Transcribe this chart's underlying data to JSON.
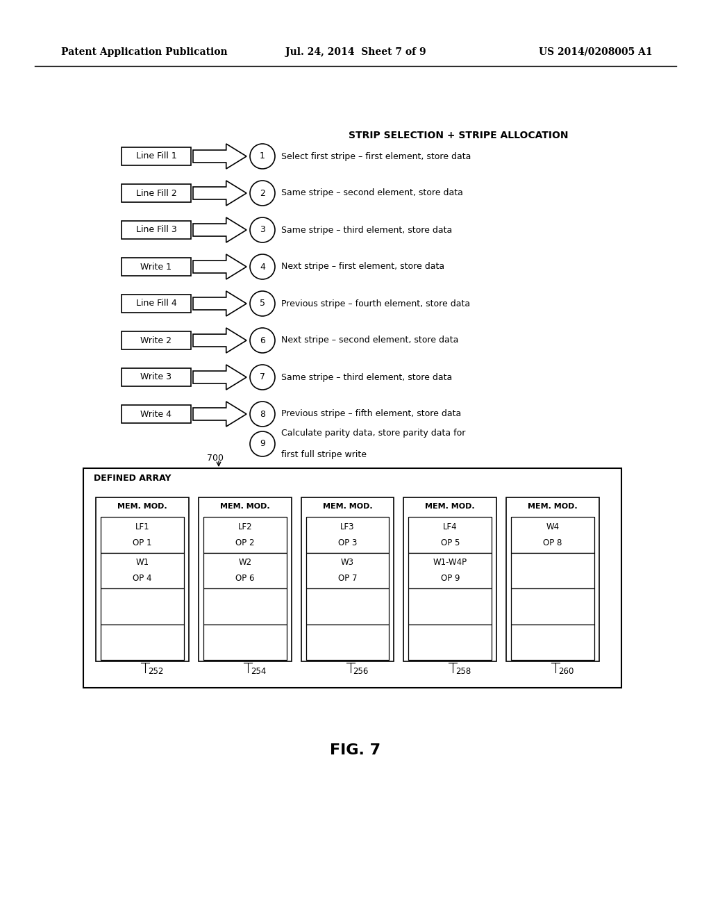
{
  "header_left": "Patent Application Publication",
  "header_mid": "Jul. 24, 2014  Sheet 7 of 9",
  "header_right": "US 2014/0208005 A1",
  "section_title": "STRIP SELECTION + STRIPE ALLOCATION",
  "rows": [
    {
      "label": "Line Fill 1",
      "num": "1",
      "desc": "Select first stripe – first element, store data"
    },
    {
      "label": "Line Fill 2",
      "num": "2",
      "desc": "Same stripe – second element, store data"
    },
    {
      "label": "Line Fill 3",
      "num": "3",
      "desc": "Same stripe – third element, store data"
    },
    {
      "label": "Write 1",
      "num": "4",
      "desc": "Next stripe – first element, store data"
    },
    {
      "label": "Line Fill 4",
      "num": "5",
      "desc": "Previous stripe – fourth element, store data"
    },
    {
      "label": "Write 2",
      "num": "6",
      "desc": "Next stripe – second element, store data"
    },
    {
      "label": "Write 3",
      "num": "7",
      "desc": "Same stripe – third element, store data"
    },
    {
      "label": "Write 4",
      "num": "8",
      "desc": "Previous stripe – fifth element, store data"
    }
  ],
  "row9_num": "9",
  "row9_desc_line1": "Calculate parity data, store parity data for",
  "row9_desc_line2": "first full stripe write",
  "array_label": "700",
  "array_title": "DEFINED ARRAY",
  "modules": [
    {
      "label": "MEM. MOD.",
      "num": "252",
      "cells": [
        {
          "lines": [
            "LF1",
            "OP 1"
          ]
        },
        {
          "lines": [
            "W1",
            "OP 4"
          ]
        },
        {
          "lines": []
        },
        {
          "lines": []
        }
      ]
    },
    {
      "label": "MEM. MOD.",
      "num": "254",
      "cells": [
        {
          "lines": [
            "LF2",
            "OP 2"
          ]
        },
        {
          "lines": [
            "W2",
            "OP 6"
          ]
        },
        {
          "lines": []
        },
        {
          "lines": []
        }
      ]
    },
    {
      "label": "MEM. MOD.",
      "num": "256",
      "cells": [
        {
          "lines": [
            "LF3",
            "OP 3"
          ]
        },
        {
          "lines": [
            "W3",
            "OP 7"
          ]
        },
        {
          "lines": []
        },
        {
          "lines": []
        }
      ]
    },
    {
      "label": "MEM. MOD.",
      "num": "258",
      "cells": [
        {
          "lines": [
            "LF4",
            "OP 5"
          ]
        },
        {
          "lines": [
            "W1-W4P",
            "OP 9"
          ]
        },
        {
          "lines": []
        },
        {
          "lines": []
        }
      ]
    },
    {
      "label": "MEM. MOD.",
      "num": "260",
      "cells": [
        {
          "lines": [
            "W4",
            "OP 8"
          ]
        },
        {
          "lines": []
        },
        {
          "lines": []
        },
        {
          "lines": []
        }
      ]
    }
  ],
  "fig_label": "FIG. 7",
  "bg_color": "#ffffff",
  "text_color": "#000000"
}
